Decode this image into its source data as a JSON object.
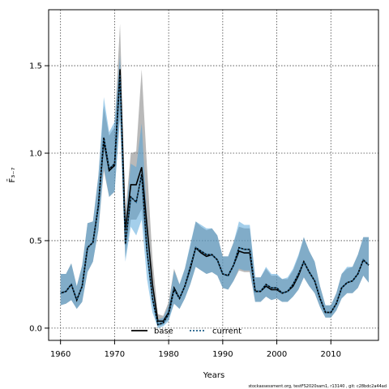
{
  "chart_data": {
    "type": "line",
    "xlabel": "Years",
    "ylabel": "F̄₃₋₇",
    "xlim": [
      1957.8,
      2018.8
    ],
    "ylim": [
      -0.07,
      1.82
    ],
    "xticks": [
      1960,
      1970,
      1980,
      1990,
      2000,
      2010
    ],
    "yticks": [
      0.0,
      0.5,
      1.0,
      1.5
    ],
    "ytick_labels": [
      "0.0",
      "0.5",
      "1.0",
      "1.5"
    ],
    "grid": true,
    "legend_position": "bottom-center",
    "series": [
      {
        "name": "base",
        "color": "#000000",
        "band_color": "#808080",
        "x": [
          1960,
          1961,
          1962,
          1963,
          1964,
          1965,
          1966,
          1967,
          1968,
          1969,
          1970,
          1971,
          1972,
          1973,
          1974,
          1975,
          1976,
          1977,
          1978,
          1979,
          1980,
          1981,
          1982,
          1983,
          1984,
          1985,
          1986,
          1987,
          1988,
          1989,
          1990,
          1991,
          1992,
          1993,
          1994,
          1995,
          1996,
          1997,
          1998,
          1999,
          2000,
          2001,
          2002,
          2003,
          2004,
          2005,
          2006,
          2007,
          2008,
          2009,
          2010,
          2011,
          2012,
          2013,
          2014,
          2015,
          2016,
          2017
        ],
        "values": [
          0.2,
          0.21,
          0.25,
          0.16,
          0.24,
          0.46,
          0.49,
          0.7,
          1.07,
          0.9,
          0.93,
          1.48,
          0.56,
          0.82,
          0.82,
          0.92,
          0.58,
          0.25,
          0.04,
          0.04,
          0.09,
          0.23,
          0.17,
          0.24,
          0.34,
          0.46,
          0.43,
          0.41,
          0.42,
          0.39,
          0.31,
          0.3,
          0.36,
          0.44,
          0.43,
          0.43,
          0.21,
          0.21,
          0.24,
          0.22,
          0.22,
          0.2,
          0.21,
          0.24,
          0.3,
          0.38,
          0.32,
          0.27,
          0.17,
          0.09,
          0.09,
          0.14,
          0.23,
          0.26,
          0.27,
          0.31,
          0.39,
          0.36
        ],
        "lower": [
          0.13,
          0.14,
          0.16,
          0.11,
          0.15,
          0.32,
          0.38,
          0.56,
          0.9,
          0.75,
          0.78,
          1.22,
          0.4,
          0.62,
          0.62,
          0.68,
          0.4,
          0.15,
          0.01,
          0.02,
          0.05,
          0.14,
          0.11,
          0.17,
          0.25,
          0.35,
          0.33,
          0.31,
          0.32,
          0.3,
          0.23,
          0.22,
          0.27,
          0.33,
          0.32,
          0.32,
          0.15,
          0.15,
          0.18,
          0.16,
          0.17,
          0.15,
          0.15,
          0.18,
          0.22,
          0.29,
          0.24,
          0.2,
          0.12,
          0.06,
          0.06,
          0.1,
          0.17,
          0.2,
          0.2,
          0.23,
          0.3,
          0.26
        ],
        "upper": [
          0.31,
          0.31,
          0.37,
          0.24,
          0.36,
          0.6,
          0.61,
          0.87,
          1.27,
          1.1,
          1.15,
          1.74,
          0.66,
          1.0,
          1.01,
          1.48,
          0.92,
          0.4,
          0.08,
          0.07,
          0.15,
          0.34,
          0.25,
          0.34,
          0.47,
          0.61,
          0.58,
          0.56,
          0.57,
          0.53,
          0.41,
          0.41,
          0.49,
          0.58,
          0.57,
          0.57,
          0.29,
          0.29,
          0.34,
          0.3,
          0.3,
          0.28,
          0.28,
          0.33,
          0.41,
          0.52,
          0.44,
          0.38,
          0.24,
          0.13,
          0.13,
          0.2,
          0.31,
          0.34,
          0.35,
          0.42,
          0.52,
          0.52
        ]
      },
      {
        "name": "current",
        "color": "#1f5f8a",
        "band_color": "#4a9fd8",
        "x": [
          1960,
          1961,
          1962,
          1963,
          1964,
          1965,
          1966,
          1967,
          1968,
          1969,
          1970,
          1971,
          1972,
          1973,
          1974,
          1975,
          1976,
          1977,
          1978,
          1979,
          1980,
          1981,
          1982,
          1983,
          1984,
          1985,
          1986,
          1987,
          1988,
          1989,
          1990,
          1991,
          1992,
          1993,
          1994,
          1995,
          1996,
          1997,
          1998,
          1999,
          2000,
          2001,
          2002,
          2003,
          2004,
          2005,
          2006,
          2007,
          2008,
          2009,
          2010,
          2011,
          2012,
          2013,
          2014,
          2015,
          2016,
          2017
        ],
        "values": [
          0.2,
          0.21,
          0.25,
          0.16,
          0.24,
          0.46,
          0.49,
          0.7,
          1.09,
          0.91,
          0.94,
          1.45,
          0.48,
          0.75,
          0.72,
          0.88,
          0.44,
          0.17,
          0.02,
          0.03,
          0.08,
          0.22,
          0.17,
          0.24,
          0.35,
          0.46,
          0.44,
          0.42,
          0.42,
          0.39,
          0.31,
          0.3,
          0.36,
          0.46,
          0.45,
          0.45,
          0.21,
          0.21,
          0.25,
          0.23,
          0.23,
          0.2,
          0.21,
          0.25,
          0.31,
          0.38,
          0.32,
          0.27,
          0.17,
          0.09,
          0.09,
          0.14,
          0.23,
          0.26,
          0.27,
          0.31,
          0.39,
          0.36
        ],
        "lower": [
          0.13,
          0.14,
          0.16,
          0.11,
          0.15,
          0.32,
          0.38,
          0.56,
          0.92,
          0.75,
          0.78,
          1.2,
          0.38,
          0.58,
          0.53,
          0.62,
          0.28,
          0.09,
          0.0,
          0.01,
          0.04,
          0.14,
          0.11,
          0.17,
          0.25,
          0.35,
          0.33,
          0.31,
          0.32,
          0.3,
          0.23,
          0.22,
          0.27,
          0.34,
          0.33,
          0.33,
          0.15,
          0.15,
          0.18,
          0.16,
          0.17,
          0.15,
          0.15,
          0.18,
          0.22,
          0.29,
          0.24,
          0.2,
          0.12,
          0.06,
          0.06,
          0.1,
          0.17,
          0.2,
          0.2,
          0.23,
          0.3,
          0.26
        ],
        "upper": [
          0.31,
          0.31,
          0.37,
          0.24,
          0.36,
          0.6,
          0.61,
          0.87,
          1.32,
          1.12,
          1.18,
          1.56,
          0.6,
          0.94,
          0.92,
          1.17,
          0.64,
          0.28,
          0.05,
          0.06,
          0.13,
          0.33,
          0.25,
          0.34,
          0.48,
          0.61,
          0.59,
          0.57,
          0.57,
          0.53,
          0.41,
          0.41,
          0.49,
          0.61,
          0.59,
          0.59,
          0.29,
          0.29,
          0.35,
          0.31,
          0.31,
          0.28,
          0.29,
          0.34,
          0.42,
          0.52,
          0.44,
          0.38,
          0.24,
          0.13,
          0.13,
          0.2,
          0.31,
          0.35,
          0.35,
          0.42,
          0.52,
          0.52
        ]
      }
    ]
  },
  "footnote": "stockassessment.org, testFS2020sam1, r13140 , git: c28bdc2a44ad"
}
